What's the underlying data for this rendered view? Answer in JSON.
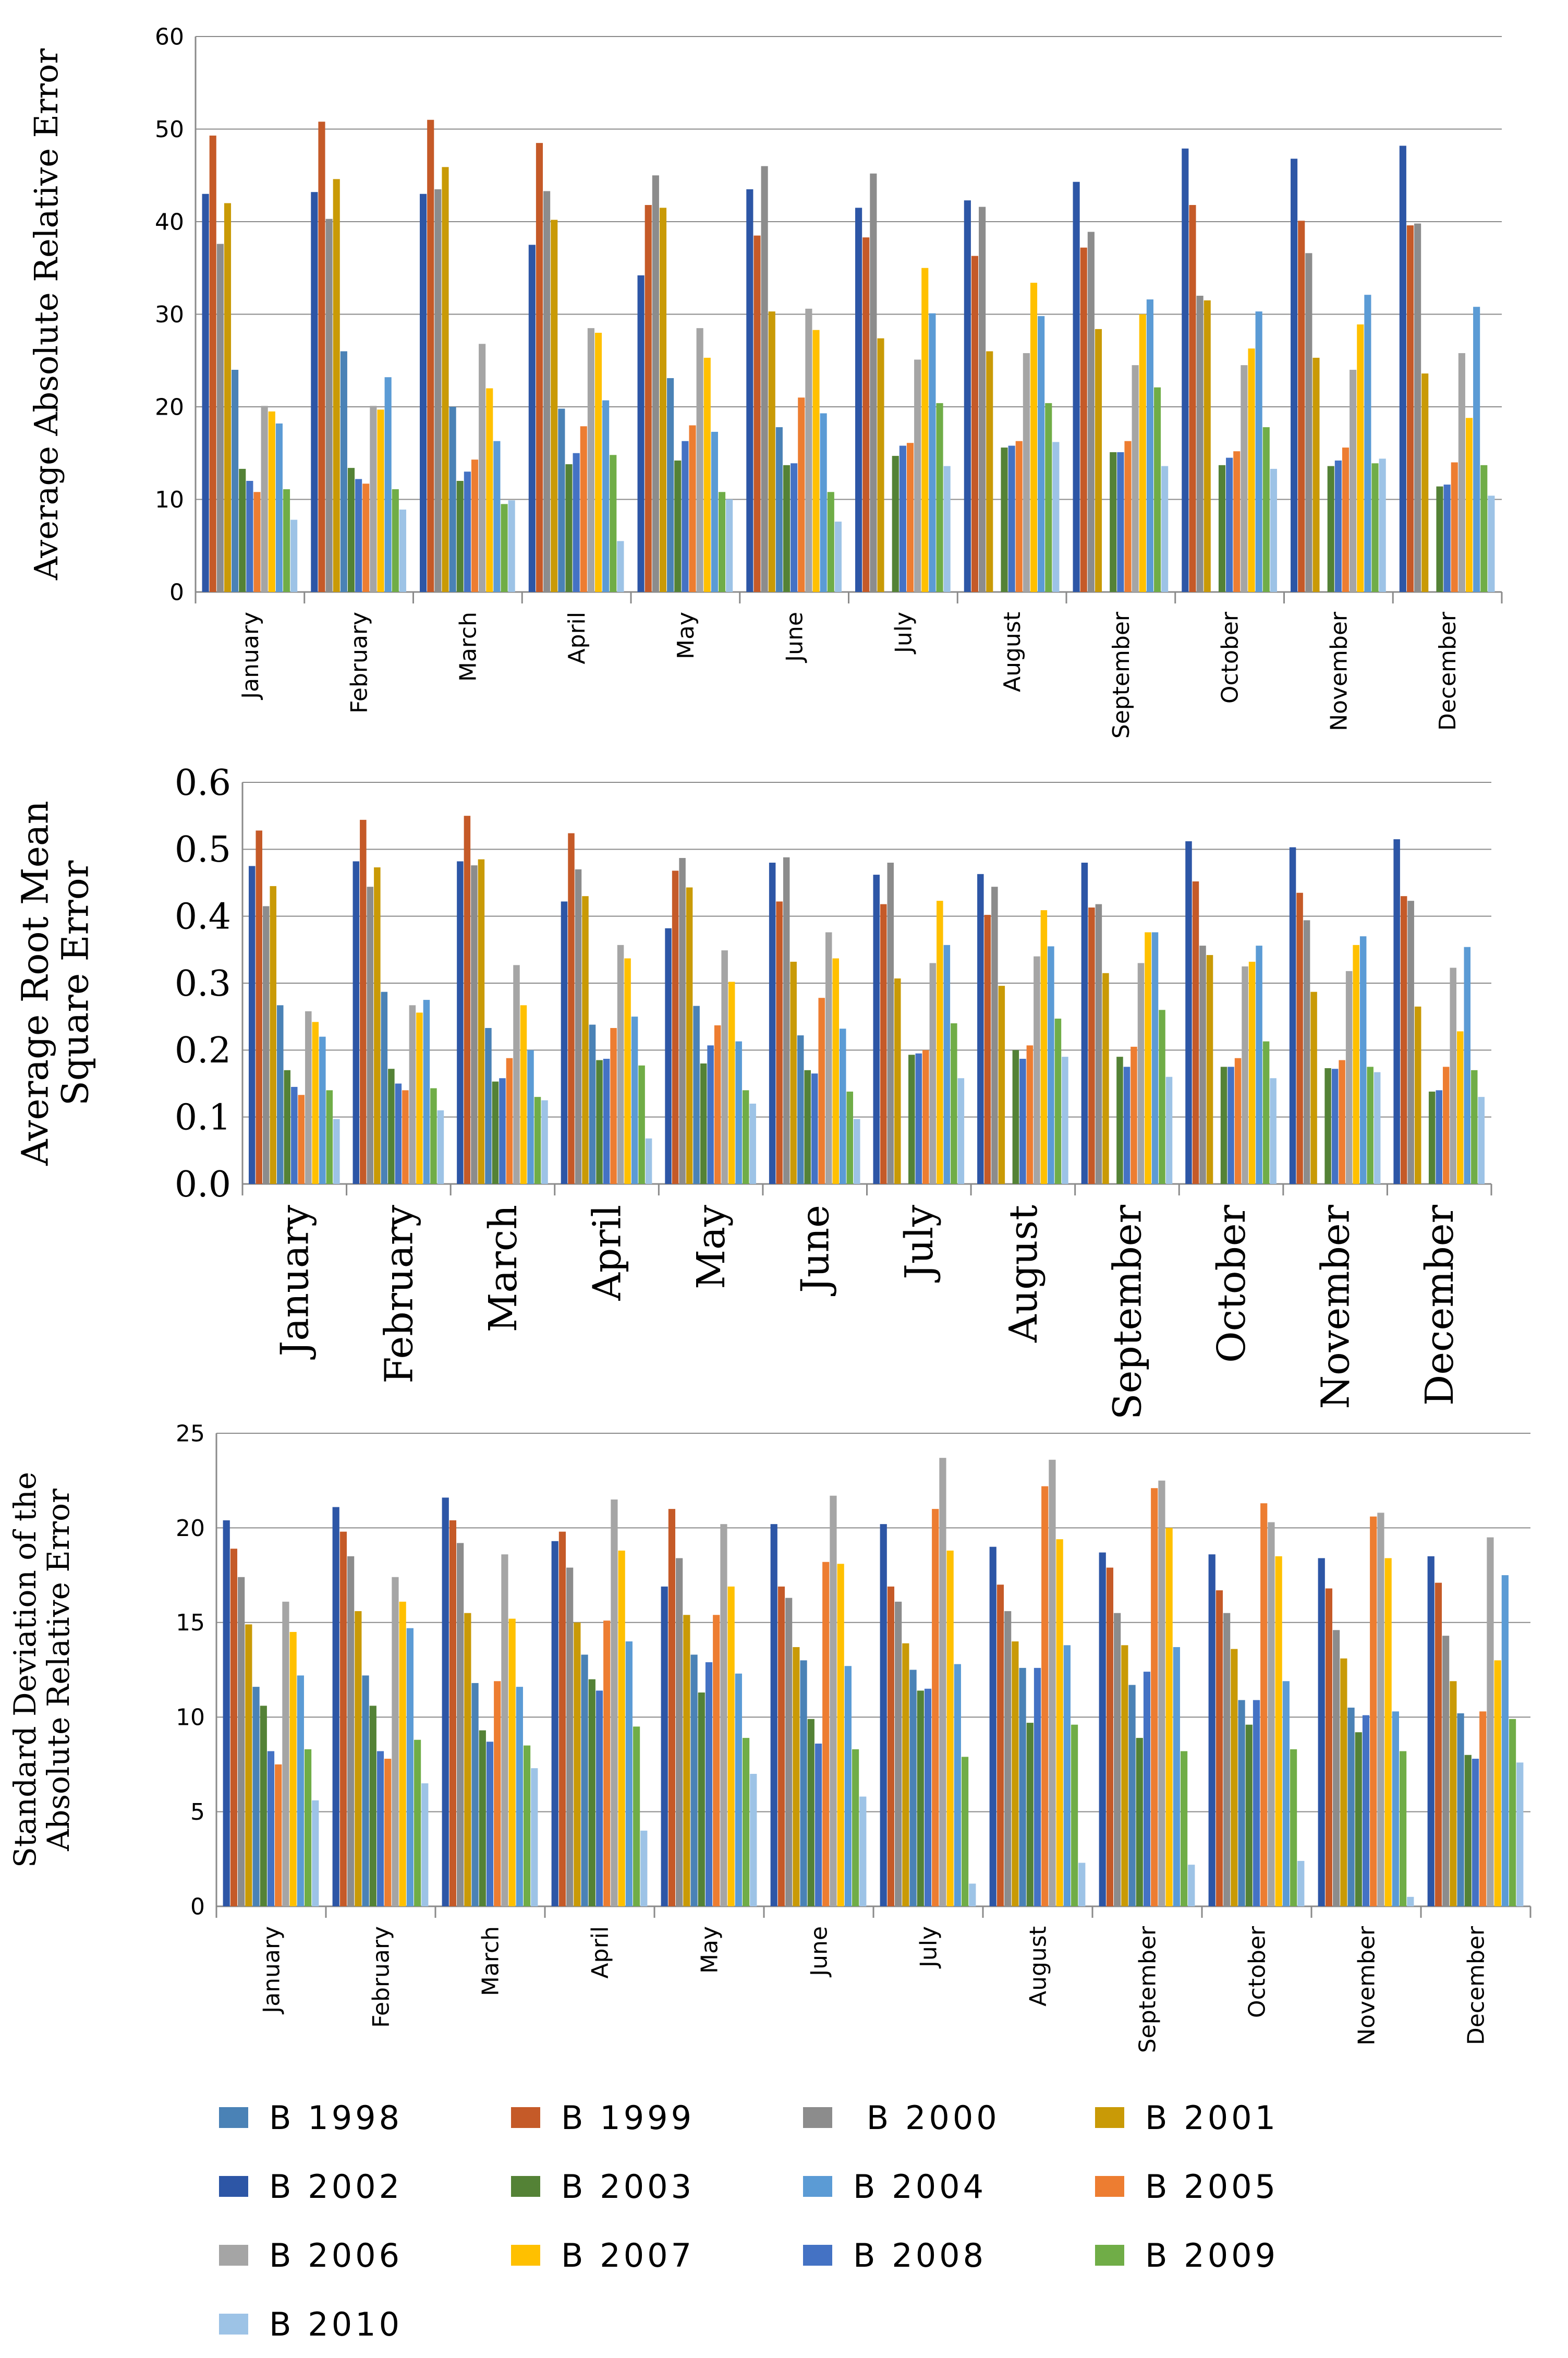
{
  "chart_data": [
    {
      "type": "bar",
      "ylabel": "Average Absolute Relative Error",
      "ylim": [
        0,
        60
      ],
      "yticks": [
        "0",
        "10",
        "20",
        "30",
        "40",
        "50",
        "60"
      ],
      "categories": [
        "January",
        "February",
        "March",
        "April",
        "May",
        "June",
        "July",
        "August",
        "September",
        "October",
        "November",
        "December"
      ],
      "series": [
        {
          "name": "B 2002",
          "values": [
            43,
            43.2,
            43,
            37.5,
            34.2,
            43.5,
            41.5,
            42.3,
            44.3,
            47.9,
            46.8,
            48.2
          ]
        },
        {
          "name": "B 1999",
          "values": [
            49.3,
            50.8,
            51,
            48.5,
            41.8,
            38.5,
            38.3,
            36.3,
            37.2,
            41.8,
            40.1,
            39.6
          ]
        },
        {
          "name": "B 2000",
          "values": [
            37.6,
            40.3,
            43.5,
            43.3,
            45,
            46,
            45.2,
            41.6,
            38.9,
            32,
            36.6,
            39.8
          ]
        },
        {
          "name": "B 2001",
          "values": [
            42,
            44.6,
            45.9,
            40.2,
            41.5,
            30.3,
            27.4,
            26,
            28.4,
            31.5,
            25.3,
            23.6
          ]
        },
        {
          "name": "B 1998",
          "values": [
            24,
            26,
            20,
            19.8,
            23.1,
            17.8,
            0,
            0,
            0,
            0,
            0,
            0
          ]
        },
        {
          "name": "B 2003",
          "values": [
            13.3,
            13.4,
            12,
            13.8,
            14.2,
            13.7,
            14.7,
            15.6,
            15.1,
            13.7,
            13.6,
            11.4
          ]
        },
        {
          "name": "B 2008",
          "values": [
            12,
            12.2,
            13,
            15,
            16.3,
            13.9,
            15.8,
            15.8,
            15.1,
            14.5,
            14.2,
            11.6
          ]
        },
        {
          "name": "B 2005",
          "values": [
            10.8,
            11.7,
            14.3,
            17.9,
            18,
            21,
            16.1,
            16.3,
            16.3,
            15.2,
            15.6,
            14
          ]
        },
        {
          "name": "B 2006",
          "values": [
            20.1,
            20.1,
            26.8,
            28.5,
            28.5,
            30.6,
            25.1,
            25.8,
            24.5,
            24.5,
            24,
            25.8
          ]
        },
        {
          "name": "B 2007",
          "values": [
            19.5,
            19.7,
            22,
            28,
            25.3,
            28.3,
            35,
            33.4,
            30,
            26.3,
            28.9,
            18.8
          ]
        },
        {
          "name": "B 2004",
          "values": [
            18.2,
            23.2,
            16.3,
            20.7,
            17.3,
            19.3,
            30.1,
            29.8,
            31.6,
            30.3,
            32.1,
            30.8
          ]
        },
        {
          "name": "B 2009",
          "values": [
            11.1,
            11.1,
            9.5,
            14.8,
            10.8,
            10.8,
            20.4,
            20.4,
            22.1,
            17.8,
            13.9,
            13.7
          ]
        },
        {
          "name": "B 2010",
          "values": [
            7.8,
            8.9,
            9.9,
            5.5,
            10,
            7.6,
            13.6,
            16.2,
            13.6,
            13.3,
            14.4,
            10.4
          ]
        }
      ]
    },
    {
      "type": "bar",
      "ylabel": "Average Root Mean Square Error",
      "ylim": [
        0,
        0.6
      ],
      "yticks": [
        "0.0",
        "0.1",
        "0.2",
        "0.3",
        "0.4",
        "0.5",
        "0.6"
      ],
      "categories": [
        "January",
        "February",
        "March",
        "April",
        "May",
        "June",
        "July",
        "August",
        "September",
        "October",
        "November",
        "December"
      ],
      "series": [
        {
          "name": "B 2002",
          "values": [
            0.475,
            0.482,
            0.482,
            0.422,
            0.382,
            0.48,
            0.462,
            0.463,
            0.48,
            0.512,
            0.503,
            0.515
          ]
        },
        {
          "name": "B 1999",
          "values": [
            0.528,
            0.544,
            0.55,
            0.524,
            0.468,
            0.422,
            0.418,
            0.402,
            0.413,
            0.452,
            0.435,
            0.43
          ]
        },
        {
          "name": "B 2000",
          "values": [
            0.415,
            0.444,
            0.476,
            0.47,
            0.487,
            0.488,
            0.48,
            0.444,
            0.418,
            0.356,
            0.394,
            0.423
          ]
        },
        {
          "name": "B 2001",
          "values": [
            0.445,
            0.473,
            0.485,
            0.43,
            0.443,
            0.332,
            0.307,
            0.296,
            0.315,
            0.342,
            0.287,
            0.265
          ]
        },
        {
          "name": "B 1998",
          "values": [
            0.267,
            0.287,
            0.233,
            0.238,
            0.266,
            0.222,
            0,
            0,
            0,
            0,
            0,
            0
          ]
        },
        {
          "name": "B 2003",
          "values": [
            0.17,
            0.172,
            0.153,
            0.185,
            0.18,
            0.17,
            0.193,
            0.2,
            0.19,
            0.175,
            0.173,
            0.138
          ]
        },
        {
          "name": "B 2008",
          "values": [
            0.145,
            0.15,
            0.158,
            0.187,
            0.207,
            0.165,
            0.195,
            0.187,
            0.175,
            0.175,
            0.172,
            0.14
          ]
        },
        {
          "name": "B 2005",
          "values": [
            0.133,
            0.14,
            0.188,
            0.233,
            0.237,
            0.278,
            0.2,
            0.207,
            0.205,
            0.188,
            0.185,
            0.175
          ]
        },
        {
          "name": "B 2006",
          "values": [
            0.258,
            0.267,
            0.327,
            0.357,
            0.349,
            0.376,
            0.33,
            0.34,
            0.33,
            0.325,
            0.318,
            0.323
          ]
        },
        {
          "name": "B 2007",
          "values": [
            0.242,
            0.256,
            0.267,
            0.337,
            0.302,
            0.337,
            0.423,
            0.409,
            0.376,
            0.332,
            0.357,
            0.228
          ]
        },
        {
          "name": "B 2004",
          "values": [
            0.22,
            0.275,
            0.2,
            0.25,
            0.213,
            0.232,
            0.357,
            0.355,
            0.376,
            0.356,
            0.37,
            0.354
          ]
        },
        {
          "name": "B 2009",
          "values": [
            0.14,
            0.143,
            0.13,
            0.177,
            0.14,
            0.138,
            0.24,
            0.247,
            0.26,
            0.213,
            0.175,
            0.17
          ]
        },
        {
          "name": "B 2010",
          "values": [
            0.097,
            0.11,
            0.125,
            0.068,
            0.12,
            0.097,
            0.158,
            0.19,
            0.16,
            0.158,
            0.167,
            0.13
          ]
        }
      ]
    },
    {
      "type": "bar",
      "ylabel": "Standard Deviation of the Absolute Relative Error",
      "ylim": [
        0,
        25
      ],
      "yticks": [
        "0",
        "5",
        "10",
        "15",
        "20",
        "25"
      ],
      "categories": [
        "January",
        "February",
        "March",
        "April",
        "May",
        "June",
        "July",
        "August",
        "September",
        "October",
        "November",
        "December"
      ],
      "series": [
        {
          "name": "B 2002",
          "values": [
            20.4,
            21.1,
            21.6,
            19.3,
            16.9,
            20.2,
            20.2,
            19,
            18.7,
            18.6,
            18.4,
            18.5
          ]
        },
        {
          "name": "B 1999",
          "values": [
            18.9,
            19.8,
            20.4,
            19.8,
            21,
            16.9,
            16.9,
            17,
            17.9,
            16.7,
            16.8,
            17.1
          ]
        },
        {
          "name": "B 2000",
          "values": [
            17.4,
            18.5,
            19.2,
            17.9,
            18.4,
            16.3,
            16.1,
            15.6,
            15.5,
            15.5,
            14.6,
            14.3
          ]
        },
        {
          "name": "B 2001",
          "values": [
            14.9,
            15.6,
            15.5,
            15,
            15.4,
            13.7,
            13.9,
            14,
            13.8,
            13.6,
            13.1,
            11.9
          ]
        },
        {
          "name": "B 1998",
          "values": [
            11.6,
            12.2,
            11.8,
            13.3,
            13.3,
            13,
            12.5,
            12.6,
            11.7,
            10.9,
            10.5,
            10.2
          ]
        },
        {
          "name": "B 2003",
          "values": [
            10.6,
            10.6,
            9.3,
            12,
            11.3,
            9.9,
            11.4,
            9.7,
            8.9,
            9.6,
            9.2,
            8
          ]
        },
        {
          "name": "B 2008",
          "values": [
            8.2,
            8.2,
            8.7,
            11.4,
            12.9,
            8.6,
            11.5,
            12.6,
            12.4,
            10.9,
            10.1,
            7.8
          ]
        },
        {
          "name": "B 2005",
          "values": [
            7.5,
            7.8,
            11.9,
            15.1,
            15.4,
            18.2,
            21,
            22.2,
            22.1,
            21.3,
            20.6,
            10.3
          ]
        },
        {
          "name": "B 2006",
          "values": [
            16.1,
            17.4,
            18.6,
            21.5,
            20.2,
            21.7,
            23.7,
            23.6,
            22.5,
            20.3,
            20.8,
            19.5
          ]
        },
        {
          "name": "B 2007",
          "values": [
            14.5,
            16.1,
            15.2,
            18.8,
            16.9,
            18.1,
            18.8,
            19.4,
            20,
            18.5,
            18.4,
            13
          ]
        },
        {
          "name": "B 2004",
          "values": [
            12.2,
            14.7,
            11.6,
            14,
            12.3,
            12.7,
            12.8,
            13.8,
            13.7,
            11.9,
            10.3,
            17.5
          ]
        },
        {
          "name": "B 2009",
          "values": [
            8.3,
            8.8,
            8.5,
            9.5,
            8.9,
            8.3,
            7.9,
            9.6,
            8.2,
            8.3,
            8.2,
            9.9
          ]
        },
        {
          "name": "B 2010",
          "values": [
            5.6,
            6.5,
            7.3,
            4,
            7,
            5.8,
            1.2,
            2.3,
            2.2,
            2.4,
            0.5,
            7.6
          ]
        }
      ]
    }
  ],
  "legend": {
    "items": [
      {
        "label": "B 1998",
        "color": "#4a82b6"
      },
      {
        "label": "B 1999",
        "color": "#c55a28"
      },
      {
        "label": " B 2000",
        "color": "#8c8c8c"
      },
      {
        "label": "B 2001",
        "color": "#c99a06"
      },
      {
        "label": "B 2002",
        "color": "#2d56a6"
      },
      {
        "label": "B 2003",
        "color": "#548236"
      },
      {
        "label": "B 2004",
        "color": "#5b9bd5"
      },
      {
        "label": "B 2005",
        "color": "#ed7d31"
      },
      {
        "label": "B 2006",
        "color": "#a5a5a5"
      },
      {
        "label": "B 2007",
        "color": "#ffc000"
      },
      {
        "label": "B 2008",
        "color": "#4472c4"
      },
      {
        "label": "B 2009",
        "color": "#70ad47"
      },
      {
        "label": "B 2010",
        "color": "#9dc3e6"
      }
    ]
  },
  "series_colors": {
    "B 2002": "#2d56a6",
    "B 1999": "#c55a28",
    "B 2000": "#8c8c8c",
    "B 2001": "#c99a06",
    "B 1998": "#4a82b6",
    "B 2003": "#548236",
    "B 2008": "#4472c4",
    "B 2005": "#ed7d31",
    "B 2006": "#a5a5a5",
    "B 2007": "#ffc000",
    "B 2004": "#5b9bd5",
    "B 2009": "#70ad47",
    "B 2010": "#9dc3e6"
  }
}
